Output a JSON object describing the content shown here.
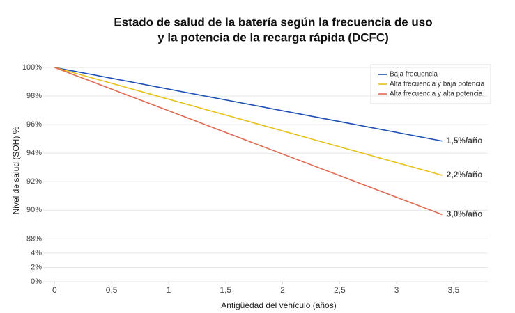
{
  "chart_data": {
    "type": "line",
    "title": [
      "Estado de salud de la batería según la frecuencia de uso",
      "y la potencia de la recarga rápida (DCFC)"
    ],
    "x_label": "Antigüedad del vehículo (años)",
    "y_label": "Nivel de salud (SOH) %",
    "x": [
      0,
      3.4
    ],
    "series": [
      {
        "name": "Baja frecuencia",
        "color": "#1f4fb4",
        "values": [
          100,
          94.85
        ],
        "annotation": "1,5%/año"
      },
      {
        "name": "Alta frecuencia y baja potencia",
        "color": "#e8c21a",
        "values": [
          100,
          92.45
        ],
        "annotation": "2,2%/año"
      },
      {
        "name": "Alta frecuencia y alta potencia",
        "color": "#e06b50",
        "values": [
          100,
          89.7
        ],
        "annotation": "3,0%/año"
      }
    ],
    "xlim": [
      -0.1,
      3.8
    ],
    "xticks": [
      0,
      {
        "value": 0.5,
        "label": "0,5"
      },
      1,
      {
        "value": 1.5,
        "label": "1,5"
      },
      2,
      {
        "value": 2.5,
        "label": "2,5"
      },
      3,
      {
        "value": 3.5,
        "label": "3,5"
      }
    ],
    "ylim": [
      0,
      100
    ],
    "axis_break": [
      4,
      88
    ],
    "yticks": [
      {
        "value": 0,
        "label": "0%"
      },
      {
        "value": 2,
        "label": "2%"
      },
      {
        "value": 4,
        "label": "4%"
      },
      {
        "value": 88,
        "label": "88%"
      },
      {
        "value": 90,
        "label": "90%"
      },
      {
        "value": 92,
        "label": "92%"
      },
      {
        "value": 94,
        "label": "94%"
      },
      {
        "value": 96,
        "label": "96%"
      },
      {
        "value": 98,
        "label": "98%"
      },
      {
        "value": 100,
        "label": "100%"
      }
    ],
    "grid": true,
    "legend": "top-right"
  }
}
